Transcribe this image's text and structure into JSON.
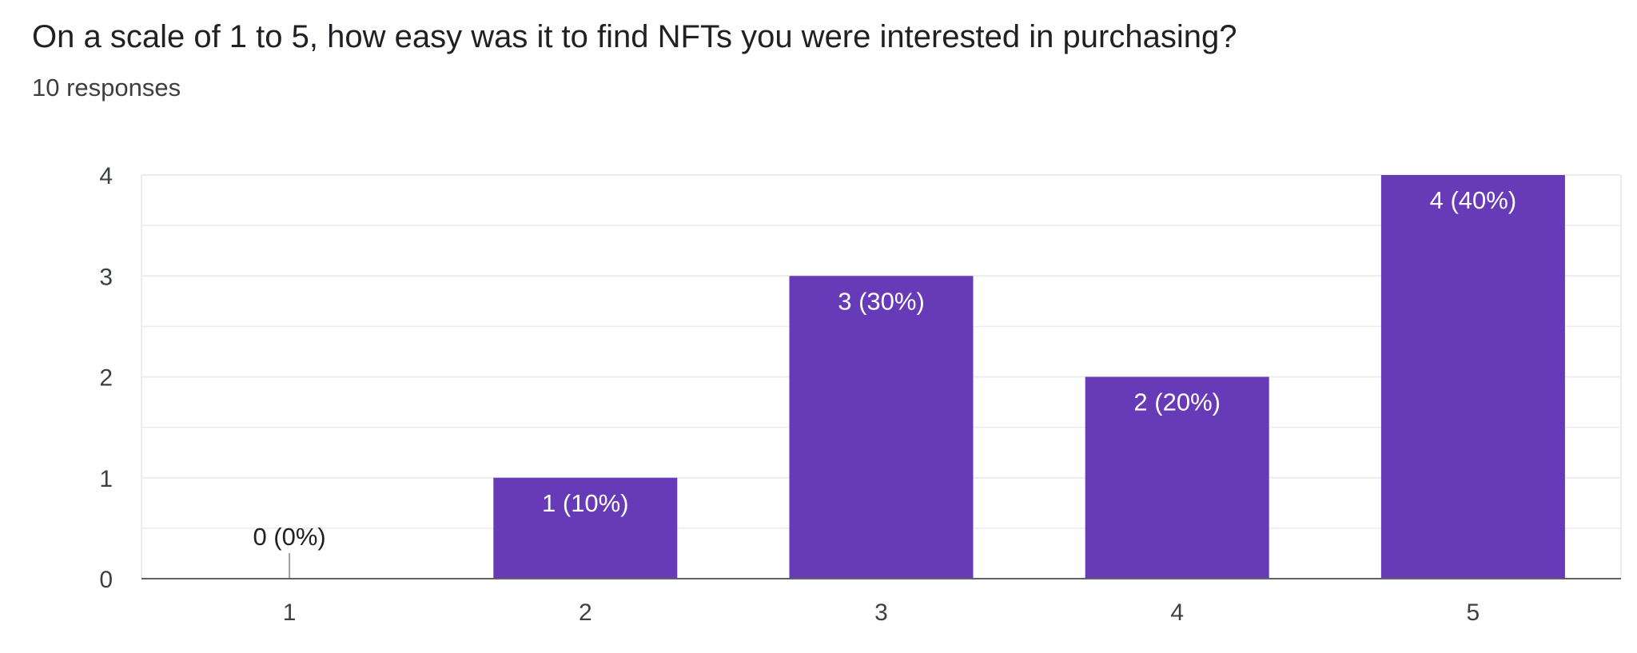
{
  "question": {
    "title": "On a scale of 1 to 5, how easy was it to find NFTs you were interested in purchasing?",
    "responses": "10 responses"
  },
  "colors": {
    "bar": "#673ab7",
    "grid": "#ececec",
    "axis": "#616161",
    "bar_label": "#ffffff",
    "zero_label": "#202124",
    "tick_label": "#3c4043"
  },
  "chart_data": {
    "type": "bar",
    "categories": [
      "1",
      "2",
      "3",
      "4",
      "5"
    ],
    "values": [
      0,
      1,
      3,
      2,
      4
    ],
    "data_labels": [
      "0 (0%)",
      "1 (10%)",
      "3 (30%)",
      "2 (20%)",
      "4 (40%)"
    ],
    "y_ticks": [
      "0",
      "1",
      "2",
      "3",
      "4"
    ],
    "ylim": [
      0,
      4
    ],
    "title": "",
    "xlabel": "",
    "ylabel": "",
    "grid": true,
    "legend": false
  }
}
